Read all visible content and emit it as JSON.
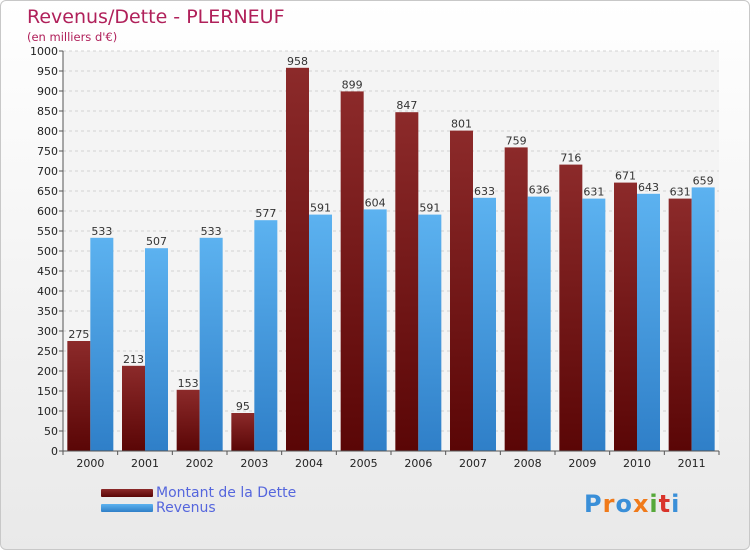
{
  "title": "Revenus/Dette - PLERNEUF",
  "subtitle": "(en milliers d'€)",
  "logo": {
    "text": "Proxiti",
    "colors": [
      "#3a8fd8",
      "#f07a1a",
      "#3a8fd8",
      "#f07a1a",
      "#56a83a",
      "#d9342b",
      "#3a8fd8"
    ]
  },
  "chart_data": {
    "type": "bar",
    "categories": [
      "2000",
      "2001",
      "2002",
      "2003",
      "2004",
      "2005",
      "2006",
      "2007",
      "2008",
      "2009",
      "2010",
      "2011"
    ],
    "series": [
      {
        "name": "Montant de la Dette",
        "color": "#7a1a1a",
        "values": [
          275,
          213,
          153,
          95,
          958,
          899,
          847,
          801,
          759,
          716,
          671,
          631
        ]
      },
      {
        "name": "Revenus",
        "color": "#4aa3e8",
        "values": [
          533,
          507,
          533,
          577,
          591,
          604,
          591,
          633,
          636,
          631,
          643,
          659
        ]
      }
    ],
    "ylim": [
      0,
      1000
    ],
    "ytick_step": 50,
    "grid": true,
    "legend": "bottom-left"
  }
}
